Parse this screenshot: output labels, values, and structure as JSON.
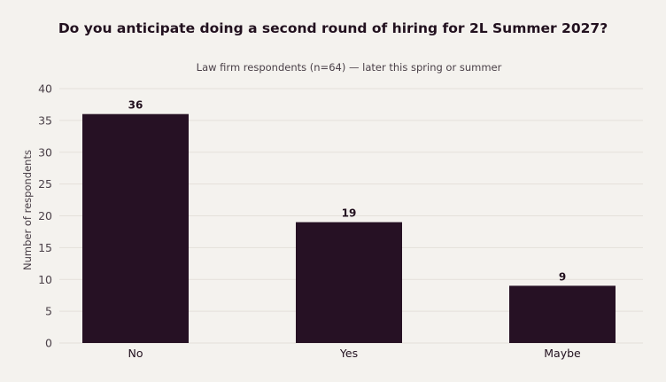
{
  "colors": {
    "background": "#f4f2ee",
    "bar": "#261124",
    "text": "#22111f",
    "muted_text": "#4a4048",
    "grid": "#e4e0da"
  },
  "chart_data": {
    "type": "bar",
    "title": "Do you anticipate doing a second round of hiring for 2L Summer 2027?",
    "subtitle": "Law firm respondents (n=64) — later this spring or summer",
    "xlabel": "",
    "ylabel": "Number of respondents",
    "categories": [
      "No",
      "Yes",
      "Maybe"
    ],
    "values": [
      36,
      19,
      9
    ],
    "data_labels": [
      "36",
      "19",
      "9"
    ],
    "ylim": [
      0,
      40
    ],
    "yticks": [
      0,
      5,
      10,
      15,
      20,
      25,
      30,
      35,
      40
    ],
    "grid": true,
    "legend": "none"
  }
}
